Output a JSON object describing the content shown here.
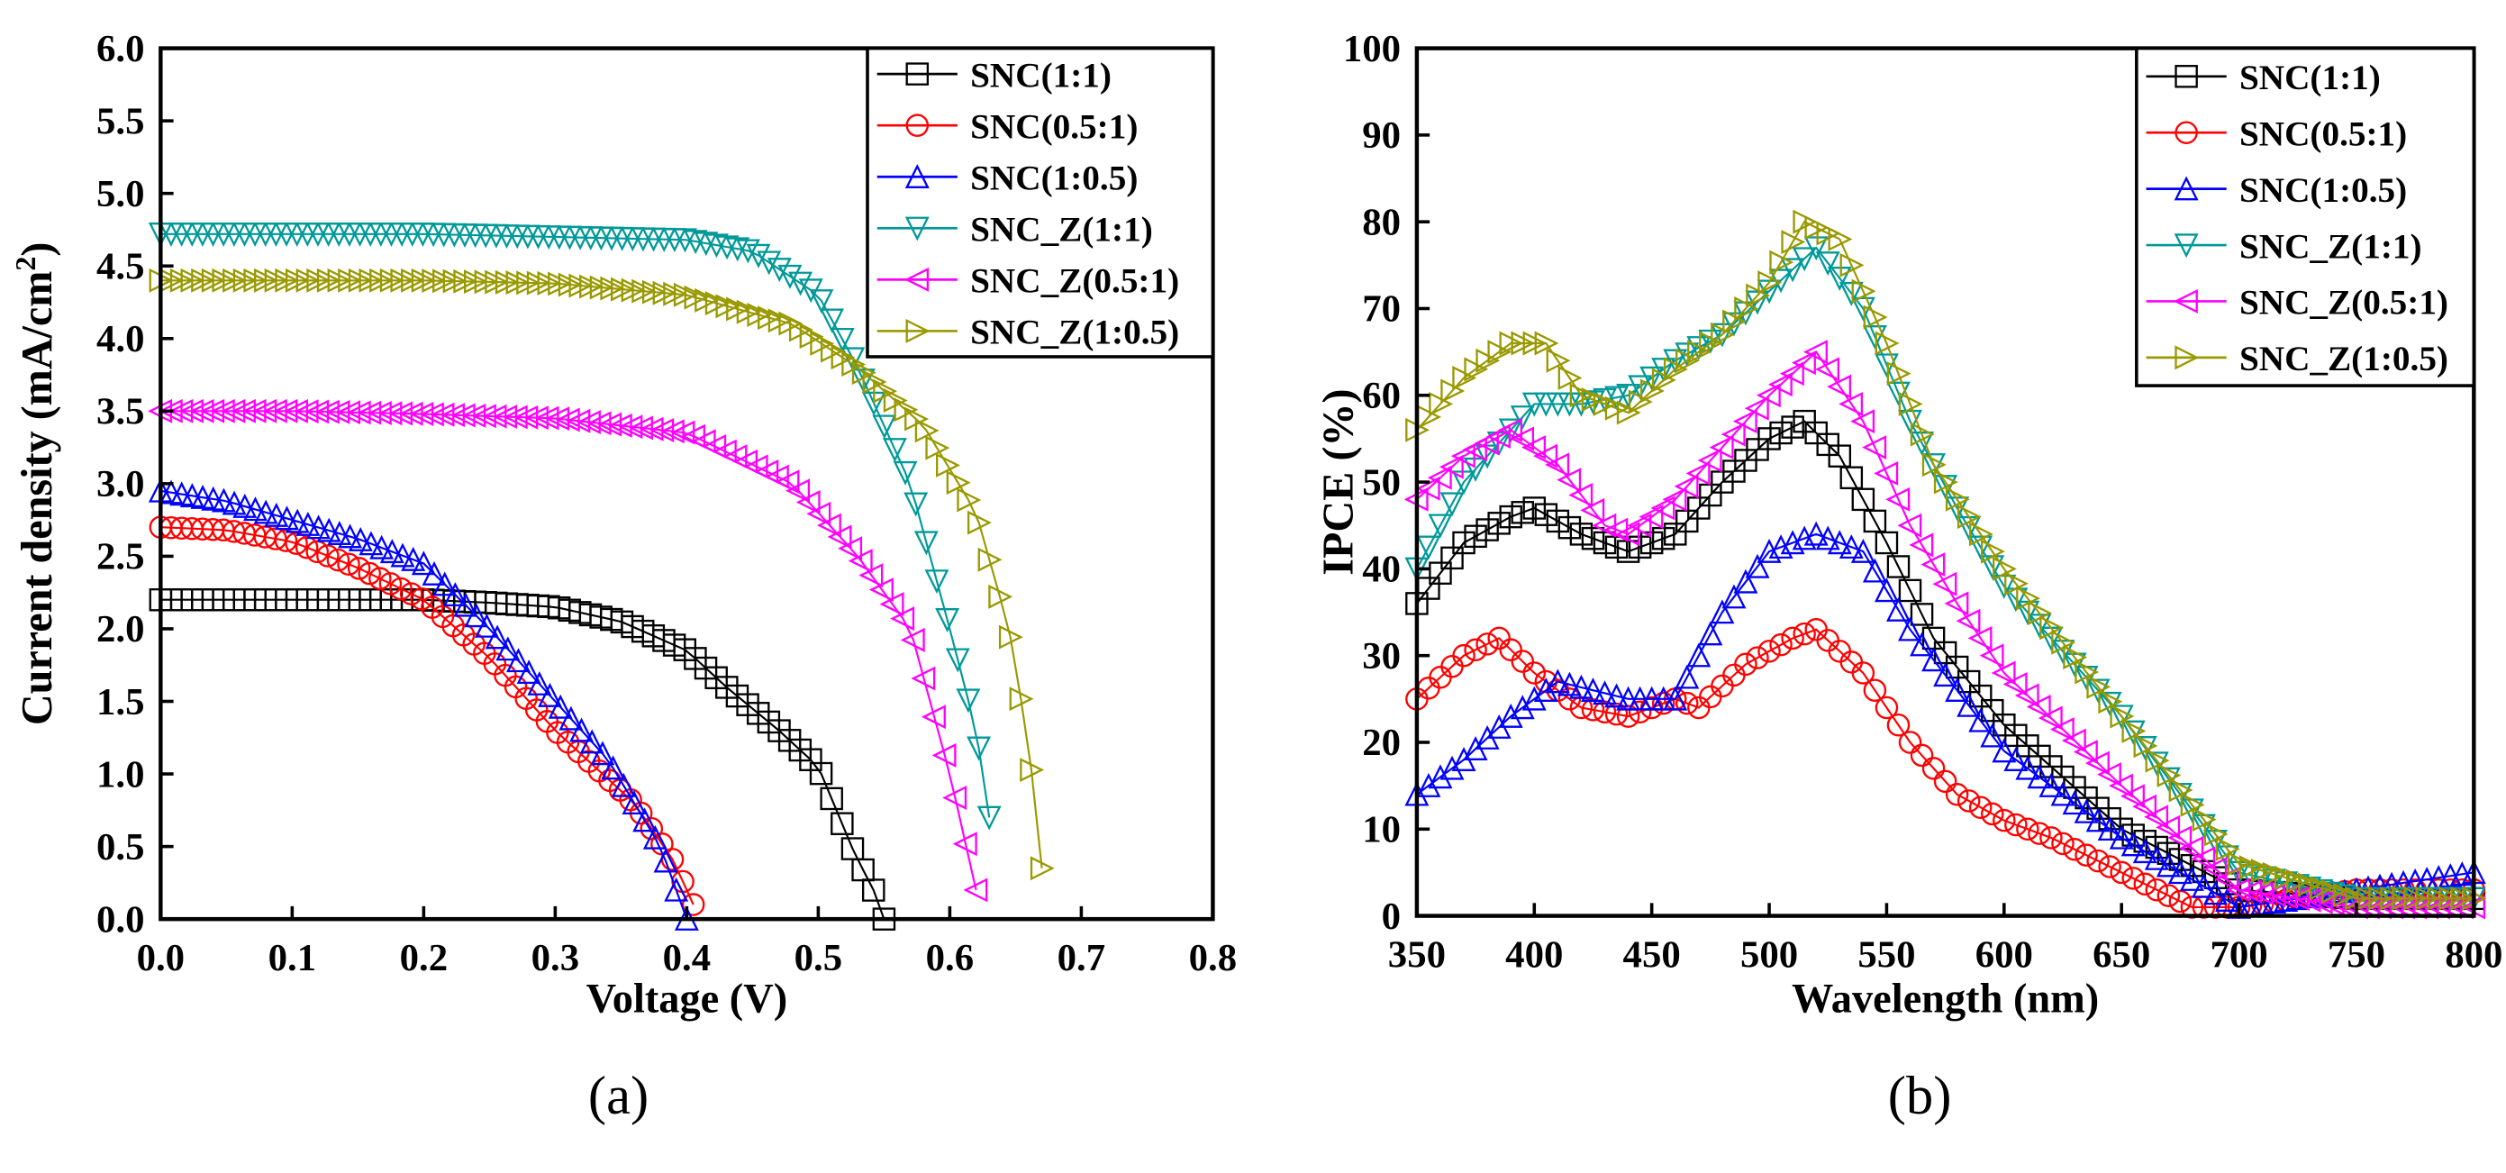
{
  "colors": {
    "SNC(1:1)": "#000000",
    "SNC(0.5:1)": "#ff0000",
    "SNC(1:0.5)": "#0000ff",
    "SNC_Z(1:1)": "#009999",
    "SNC_Z(0.5:1)": "#ff00ff",
    "SNC_Z(1:0.5)": "#999900"
  },
  "chart_data": [
    {
      "type": "line",
      "panel_label": "(a)",
      "xlabel": "Voltage (V)",
      "ylabel": "Current density (mA/cm",
      "ylabel_sup": "2",
      "ylabel_end": ")",
      "xlim": [
        0,
        0.8
      ],
      "ylim": [
        0,
        6.0
      ],
      "xticks": [
        "0.0",
        "0.1",
        "0.2",
        "0.3",
        "0.4",
        "0.5",
        "0.6",
        "0.7",
        "0.8"
      ],
      "yticks": [
        "0.0",
        "0.5",
        "1.0",
        "1.5",
        "2.0",
        "2.5",
        "3.0",
        "3.5",
        "4.0",
        "4.5",
        "5.0",
        "5.5",
        "6.0"
      ],
      "legend_position": "top-right",
      "series": [
        {
          "name": "SNC(1:1)",
          "marker": "square",
          "x": [
            0,
            0.1,
            0.2,
            0.25,
            0.3,
            0.35,
            0.4,
            0.43,
            0.47,
            0.5,
            0.53,
            0.54,
            0.55
          ],
          "y": [
            2.2,
            2.2,
            2.2,
            2.18,
            2.15,
            2.05,
            1.85,
            1.6,
            1.3,
            1.05,
            0.4,
            0.25,
            0
          ]
        },
        {
          "name": "SNC(0.5:1)",
          "marker": "circle",
          "x": [
            0,
            0.05,
            0.1,
            0.15,
            0.2,
            0.25,
            0.3,
            0.36,
            0.39,
            0.405
          ],
          "y": [
            2.7,
            2.68,
            2.6,
            2.42,
            2.2,
            1.8,
            1.3,
            0.8,
            0.4,
            0.1
          ]
        },
        {
          "name": "SNC(1:0.5)",
          "marker": "triangle-up",
          "x": [
            0,
            0.05,
            0.1,
            0.15,
            0.2,
            0.25,
            0.3,
            0.34,
            0.38,
            0.4
          ],
          "y": [
            2.95,
            2.88,
            2.75,
            2.62,
            2.45,
            2.0,
            1.5,
            1.1,
            0.5,
            0
          ]
        },
        {
          "name": "SNC_Z(1:1)",
          "marker": "triangle-down",
          "x": [
            0,
            0.1,
            0.2,
            0.3,
            0.4,
            0.45,
            0.5,
            0.53,
            0.57,
            0.6,
            0.62,
            0.63
          ],
          "y": [
            4.72,
            4.72,
            4.72,
            4.7,
            4.68,
            4.6,
            4.3,
            3.8,
            3.0,
            2.0,
            1.3,
            0.7
          ]
        },
        {
          "name": "SNC_Z(0.5:1)",
          "marker": "triangle-left",
          "x": [
            0,
            0.1,
            0.2,
            0.3,
            0.4,
            0.48,
            0.53,
            0.57,
            0.6,
            0.62
          ],
          "y": [
            3.5,
            3.5,
            3.48,
            3.45,
            3.35,
            3.0,
            2.5,
            2.0,
            1.0,
            0.2
          ]
        },
        {
          "name": "SNC_Z(1:0.5)",
          "marker": "triangle-right",
          "x": [
            0,
            0.1,
            0.2,
            0.3,
            0.4,
            0.48,
            0.53,
            0.58,
            0.62,
            0.645,
            0.66,
            0.67
          ],
          "y": [
            4.4,
            4.4,
            4.4,
            4.38,
            4.3,
            4.1,
            3.8,
            3.4,
            2.8,
            2.0,
            1.2,
            0.35
          ]
        }
      ]
    },
    {
      "type": "line",
      "panel_label": "(b)",
      "xlabel": "Wavelength (nm)",
      "ylabel": "IPCE (%)",
      "xlim": [
        350,
        800
      ],
      "ylim": [
        0,
        100
      ],
      "xticks": [
        "350",
        "400",
        "450",
        "500",
        "550",
        "600",
        "650",
        "700",
        "750",
        "800"
      ],
      "yticks": [
        "0",
        "10",
        "20",
        "30",
        "40",
        "50",
        "60",
        "70",
        "80",
        "90",
        "100"
      ],
      "legend_position": "top-right",
      "series": [
        {
          "name": "SNC(1:1)",
          "marker": "square",
          "x": [
            350,
            370,
            390,
            400,
            420,
            440,
            460,
            480,
            500,
            515,
            530,
            550,
            570,
            600,
            650,
            700,
            750,
            800
          ],
          "y": [
            36,
            43,
            46,
            47,
            44,
            42,
            44,
            50,
            55,
            57,
            53,
            43,
            32,
            22,
            10,
            3,
            2,
            2
          ]
        },
        {
          "name": "SNC(0.5:1)",
          "marker": "circle",
          "x": [
            350,
            370,
            385,
            400,
            420,
            440,
            460,
            470,
            490,
            510,
            520,
            540,
            560,
            580,
            600,
            620,
            650,
            680,
            700,
            750,
            800
          ],
          "y": [
            25,
            30,
            32,
            28,
            24,
            23,
            25,
            24,
            29,
            32,
            33,
            28,
            20,
            14,
            11,
            9,
            5,
            1,
            1,
            3,
            3
          ]
        },
        {
          "name": "SNC(1:0.5)",
          "marker": "triangle-up",
          "x": [
            350,
            370,
            390,
            410,
            440,
            460,
            480,
            500,
            520,
            540,
            560,
            580,
            600,
            650,
            700,
            750,
            800
          ],
          "y": [
            14,
            18,
            23,
            27,
            25,
            25,
            35,
            42,
            44,
            42,
            33,
            26,
            19,
            9,
            1,
            3,
            5
          ]
        },
        {
          "name": "SNC_Z(1:1)",
          "marker": "triangle-down",
          "x": [
            350,
            370,
            390,
            400,
            420,
            440,
            460,
            480,
            500,
            520,
            540,
            560,
            580,
            600,
            650,
            700,
            750,
            800
          ],
          "y": [
            40,
            50,
            56,
            59,
            59,
            60,
            64,
            67,
            72,
            77,
            70,
            57,
            47,
            38,
            23,
            5,
            2,
            2
          ]
        },
        {
          "name": "SNC_Z(0.5:1)",
          "marker": "triangle-left",
          "x": [
            350,
            370,
            390,
            410,
            430,
            440,
            460,
            480,
            500,
            520,
            540,
            560,
            580,
            600,
            650,
            700,
            750,
            800
          ],
          "y": [
            48,
            53,
            56,
            52,
            45,
            44,
            48,
            54,
            60,
            65,
            57,
            45,
            36,
            28,
            15,
            3,
            1,
            1
          ]
        },
        {
          "name": "SNC_Z(1:0.5)",
          "marker": "triangle-right",
          "x": [
            350,
            370,
            390,
            405,
            420,
            440,
            460,
            480,
            500,
            515,
            530,
            550,
            570,
            600,
            650,
            700,
            750,
            800
          ],
          "y": [
            56,
            62,
            66,
            66,
            60,
            58,
            63,
            67,
            73,
            80,
            78,
            66,
            52,
            40,
            23,
            6,
            2,
            2
          ]
        }
      ]
    }
  ]
}
